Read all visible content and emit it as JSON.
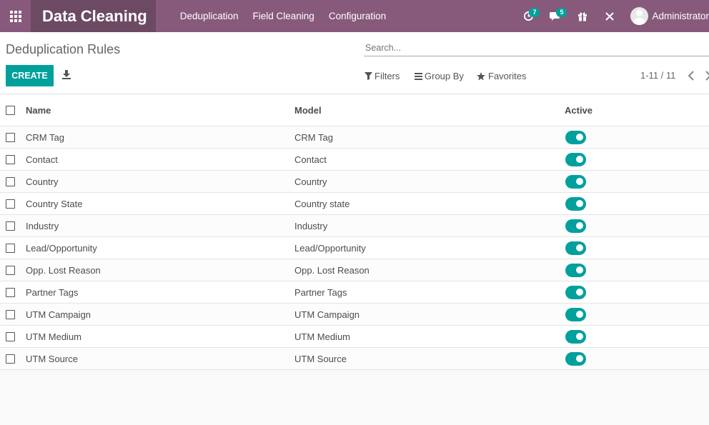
{
  "navbar": {
    "app_title": "Data Cleaning",
    "menu": [
      "Deduplication",
      "Field Cleaning",
      "Configuration"
    ],
    "activity_count": "7",
    "messages_count": "5",
    "user_name": "Administrator"
  },
  "control": {
    "title": "Deduplication Rules",
    "search_placeholder": "Search...",
    "create_label": "CREATE",
    "filters_label": "Filters",
    "group_by_label": "Group By",
    "favorites_label": "Favorites",
    "pager": "1-11 / 11"
  },
  "table": {
    "headers": {
      "name": "Name",
      "model": "Model",
      "active": "Active"
    },
    "rows": [
      {
        "name": "CRM Tag",
        "model": "CRM Tag",
        "active": true
      },
      {
        "name": "Contact",
        "model": "Contact",
        "active": true
      },
      {
        "name": "Country",
        "model": "Country",
        "active": true
      },
      {
        "name": "Country State",
        "model": "Country state",
        "active": true
      },
      {
        "name": "Industry",
        "model": "Industry",
        "active": true
      },
      {
        "name": "Lead/Opportunity",
        "model": "Lead/Opportunity",
        "active": true
      },
      {
        "name": "Opp. Lost Reason",
        "model": "Opp. Lost Reason",
        "active": true
      },
      {
        "name": "Partner Tags",
        "model": "Partner Tags",
        "active": true
      },
      {
        "name": "UTM Campaign",
        "model": "UTM Campaign",
        "active": true
      },
      {
        "name": "UTM Medium",
        "model": "UTM Medium",
        "active": true
      },
      {
        "name": "UTM Source",
        "model": "UTM Source",
        "active": true
      }
    ]
  },
  "colors": {
    "navbar": "#875a7b",
    "brand": "#6c4a63",
    "accent": "#00a09d"
  }
}
